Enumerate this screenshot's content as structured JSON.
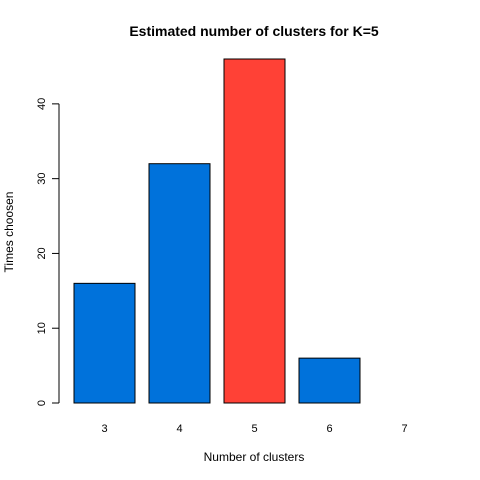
{
  "chart_data": {
    "type": "bar",
    "title": "Estimated number of clusters for K=5",
    "xlabel": "Number of clusters",
    "ylabel": "Times choosen",
    "categories": [
      "3",
      "4",
      "5",
      "6",
      "7"
    ],
    "values": [
      16,
      32,
      46,
      6,
      0
    ],
    "colors": [
      "#0072DB",
      "#0072DB",
      "#FF4136",
      "#0072DB",
      "#0072DB"
    ],
    "ylim": [
      0,
      46
    ],
    "yticks": [
      0,
      10,
      20,
      30,
      40
    ],
    "grid": false,
    "legend": "none"
  }
}
